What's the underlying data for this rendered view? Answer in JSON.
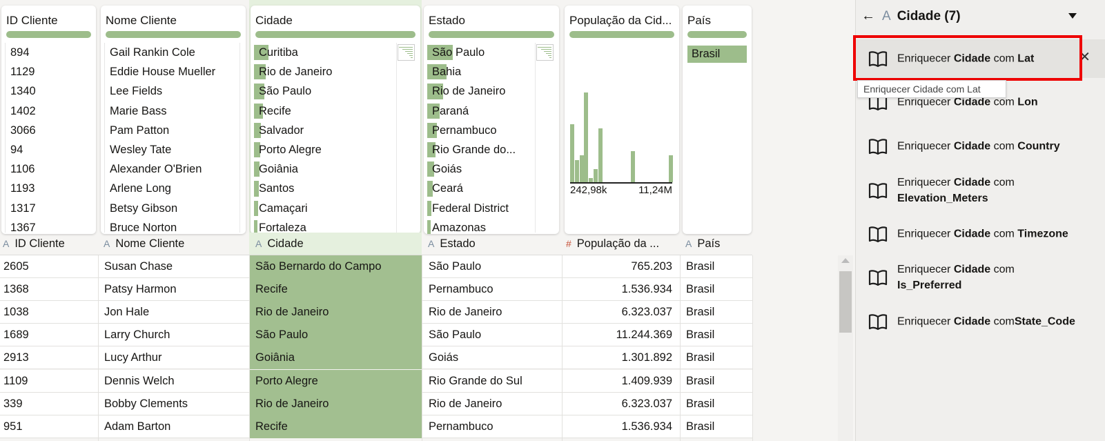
{
  "profile_cards": [
    {
      "title": "ID Cliente",
      "items": [
        "894",
        "1129",
        "1340",
        "1402",
        "3066",
        "94",
        "1106",
        "1193",
        "1317",
        "1367"
      ]
    },
    {
      "title": "Nome Cliente",
      "items": [
        "Gail Rankin Cole",
        "Eddie House Mueller",
        "Lee Fields",
        "Marie Bass",
        "Pam Patton",
        "Wesley Tate",
        "Alexander O'Brien",
        "Arlene Long",
        "Betsy Gibson",
        "Bruce Norton"
      ]
    },
    {
      "title": "Cidade",
      "items": [
        "Curitiba",
        "Rio de Janeiro",
        "São Paulo",
        "Recife",
        "Salvador",
        "Porto Alegre",
        "Goiânia",
        "Santos",
        "Camaçari",
        "Fortaleza"
      ],
      "bar_fractions": [
        0.09,
        0.075,
        0.065,
        0.055,
        0.045,
        0.04,
        0.035,
        0.03,
        0.025,
        0.02
      ]
    },
    {
      "title": "Estado",
      "items": [
        "São Paulo",
        "Bahia",
        "Rio de Janeiro",
        "Paraná",
        "Pernambuco",
        "Rio Grande do...",
        "Goiás",
        "Ceará",
        "Federal District",
        "Amazonas"
      ],
      "bar_fractions": [
        0.16,
        0.12,
        0.1,
        0.08,
        0.06,
        0.05,
        0.045,
        0.035,
        0.025,
        0.02
      ]
    },
    {
      "title": "População da Cid...",
      "hist_min_label": "242,98k",
      "hist_max_label": "11,24M",
      "hist_values": [
        0.65,
        0.25,
        0.3,
        1.0,
        0.05,
        0.15,
        0.6,
        0,
        0,
        0,
        0,
        0,
        0,
        0.35,
        0,
        0,
        0,
        0,
        0,
        0,
        0,
        0.3
      ]
    },
    {
      "title": "País",
      "items": [
        "Brasil"
      ]
    }
  ],
  "columns": [
    {
      "type_icon": "A",
      "label": "ID Cliente"
    },
    {
      "type_icon": "A",
      "label": "Nome Cliente"
    },
    {
      "type_icon": "A",
      "label": "Cidade"
    },
    {
      "type_icon": "A",
      "label": "Estado"
    },
    {
      "type_icon": "#",
      "label": "População da ..."
    },
    {
      "type_icon": "A",
      "label": "País"
    }
  ],
  "rows": [
    [
      "2605",
      "Susan Chase",
      "São Bernardo do Campo",
      "São Paulo",
      "765.203",
      "Brasil"
    ],
    [
      "1368",
      "Patsy Harmon",
      "Recife",
      "Pernambuco",
      "1.536.934",
      "Brasil"
    ],
    [
      "1038",
      "Jon Hale",
      "Rio de Janeiro",
      "Rio de Janeiro",
      "6.323.037",
      "Brasil"
    ],
    [
      "1689",
      "Larry Church",
      "São Paulo",
      "São Paulo",
      "11.244.369",
      "Brasil"
    ],
    [
      "2913",
      "Lucy Arthur",
      "Goiânia",
      "Goiás",
      "1.301.892",
      "Brasil"
    ],
    [
      "1109",
      "Dennis Welch",
      "Porto Alegre",
      "Rio Grande do Sul",
      "1.409.939",
      "Brasil"
    ],
    [
      "339",
      "Bobby Clements",
      "Rio de Janeiro",
      "Rio de Janeiro",
      "6.323.037",
      "Brasil"
    ],
    [
      "951",
      "Adam Barton",
      "Recife",
      "Pernambuco",
      "1.536.934",
      "Brasil"
    ]
  ],
  "right_panel": {
    "back_icon": "arrow-left-icon",
    "type_icon": "A",
    "title": "Cidade (7)",
    "tooltip": "Enriquecer Cidade com Lat",
    "items": [
      {
        "prefix": "Enriquecer ",
        "column": "Cidade",
        "mid": " com ",
        "attr": "Lat"
      },
      {
        "prefix": "Enriquecer ",
        "column": "Cidade",
        "mid": " com ",
        "attr": "Lon"
      },
      {
        "prefix": "Enriquecer ",
        "column": "Cidade",
        "mid": " com ",
        "attr": "Country"
      },
      {
        "prefix": "Enriquecer ",
        "column": "Cidade",
        "mid": " com",
        "attr": "Elevation_Meters"
      },
      {
        "prefix": "Enriquecer ",
        "column": "Cidade",
        "mid": " com ",
        "attr": "Timezone"
      },
      {
        "prefix": "Enriquecer ",
        "column": "Cidade",
        "mid": " com",
        "attr": "Is_Preferred"
      },
      {
        "prefix": "Enriquecer ",
        "column": "Cidade",
        "mid": " com",
        "attr": "State_Code"
      }
    ]
  },
  "colors": {
    "accent_green": "#9dbd8b",
    "selected_column": "#a2bf90",
    "highlight_red": "#ee0000"
  }
}
